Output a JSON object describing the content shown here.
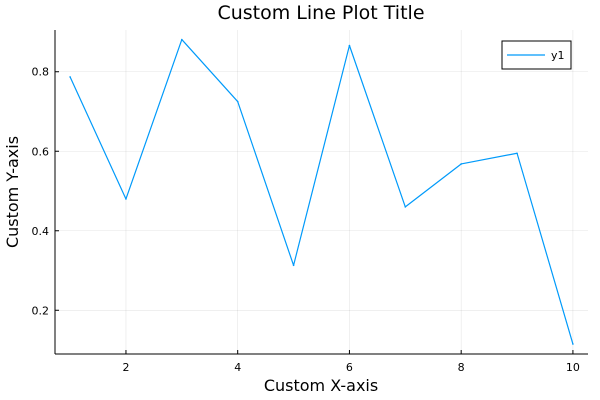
{
  "chart_data": {
    "type": "line",
    "title": "Custom Line Plot Title",
    "xlabel": "Custom X-axis",
    "ylabel": "Custom Y-axis",
    "xlim": [
      0.73,
      10.27
    ],
    "ylim": [
      0.09,
      0.905
    ],
    "xticks": [
      2,
      4,
      6,
      8,
      10
    ],
    "yticks": [
      0.2,
      0.4,
      0.6,
      0.8
    ],
    "grid": true,
    "legend_position": "top-right",
    "series": [
      {
        "name": "y1",
        "color": "#009AFA",
        "x": [
          1,
          2,
          3,
          4,
          5,
          6,
          7,
          8,
          9,
          10
        ],
        "y": [
          0.787,
          0.48,
          0.881,
          0.725,
          0.313,
          0.866,
          0.46,
          0.568,
          0.595,
          0.115
        ]
      }
    ]
  }
}
